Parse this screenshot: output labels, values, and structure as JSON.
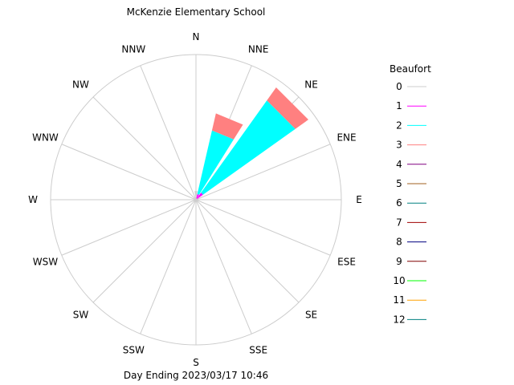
{
  "chart_data": {
    "type": "wind-rose",
    "title": "McKenzie Elementary School",
    "footer": "Day Ending 2023/03/17 10:46",
    "directions": [
      "N",
      "NNE",
      "NE",
      "ENE",
      "E",
      "ESE",
      "SE",
      "SSE",
      "S",
      "SSW",
      "SW",
      "WSW",
      "W",
      "WNW",
      "NW",
      "NNW"
    ],
    "radial_max": 1.0,
    "rings": [
      0.2,
      0.4,
      0.6,
      0.8,
      1.0
    ],
    "legend": {
      "title": "Beaufort",
      "items": [
        {
          "label": "0",
          "color": "#cccccc"
        },
        {
          "label": "1",
          "color": "#ff00ff"
        },
        {
          "label": "2",
          "color": "#00ffff"
        },
        {
          "label": "3",
          "color": "#ff8080"
        },
        {
          "label": "4",
          "color": "#800080"
        },
        {
          "label": "5",
          "color": "#a06020"
        },
        {
          "label": "6",
          "color": "#008080"
        },
        {
          "label": "7",
          "color": "#a00000"
        },
        {
          "label": "8",
          "color": "#000080"
        },
        {
          "label": "9",
          "color": "#800000"
        },
        {
          "label": "10",
          "color": "#00ff00"
        },
        {
          "label": "11",
          "color": "#ffa000"
        },
        {
          "label": "12",
          "color": "#008080"
        }
      ]
    },
    "sectors": [
      {
        "direction": "N",
        "values": [
          0.06,
          0.0,
          0.0,
          0.0
        ]
      },
      {
        "direction": "NNE",
        "values": [
          0.01,
          0.03,
          0.45,
          0.12
        ]
      },
      {
        "direction": "NE",
        "values": [
          0.01,
          0.05,
          0.78,
          0.11
        ]
      }
    ]
  }
}
